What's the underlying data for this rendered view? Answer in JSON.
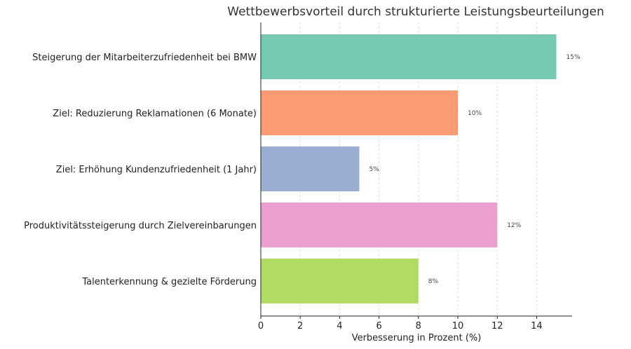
{
  "chart_data": {
    "type": "bar",
    "orientation": "horizontal",
    "title": "Wettbewerbsvorteil durch strukturierte Leistungsbeurteilungen",
    "xlabel": "Verbesserung in Prozent (%)",
    "ylabel": "",
    "xlim": [
      0,
      15.8
    ],
    "xticks": [
      0,
      2,
      4,
      6,
      8,
      10,
      12,
      14
    ],
    "grid": "x-dashed",
    "categories": [
      "Steigerung der Mitarbeiterzufriedenheit bei BMW",
      "Ziel: Reduzierung Reklamationen (6 Monate)",
      "Ziel: Erhöhung Kundenzufriedenheit (1 Jahr)",
      "Produktivitätssteigerung durch Zielvereinbarungen",
      "Talenterkennung & gezielte Förderung"
    ],
    "values": [
      15,
      10,
      5,
      12,
      8
    ],
    "data_labels": [
      "15%",
      "10%",
      "5%",
      "12%",
      "8%"
    ],
    "colors": [
      "#74c9b0",
      "#fc9b72",
      "#9aaed4",
      "#eb9fcf",
      "#b1db63"
    ]
  }
}
